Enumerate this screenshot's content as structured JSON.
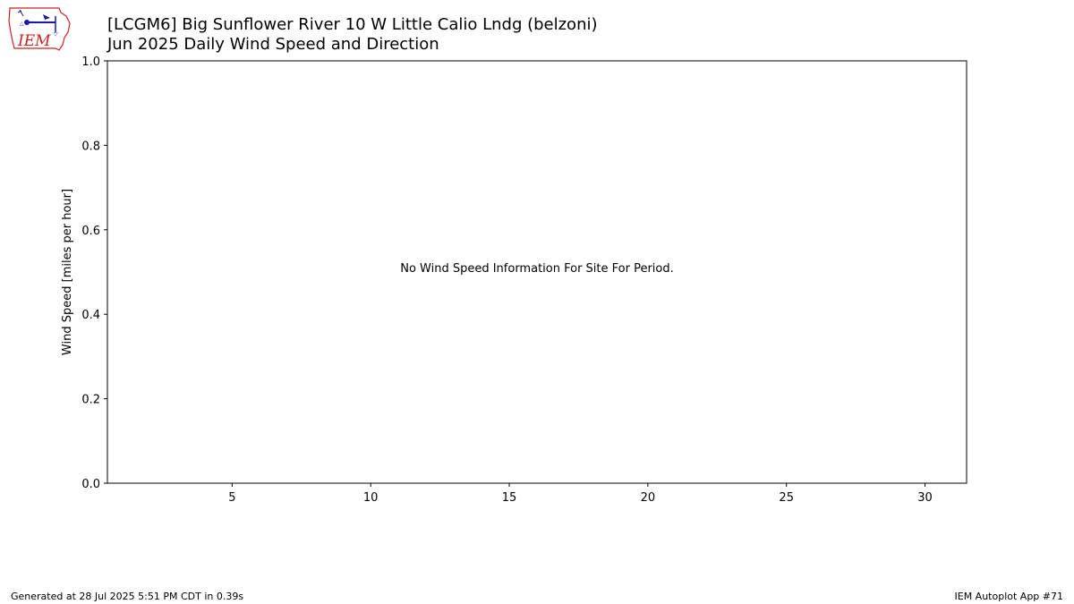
{
  "header": {
    "logo_text": "IEM",
    "title_line1": "[LCGM6] Big Sunflower River 10 W Little Calio Lndg (belzoni)",
    "title_line2": "Jun 2025 Daily Wind Speed and Direction"
  },
  "chart_data": {
    "type": "line",
    "ylabel": "Wind Speed [miles per hour]",
    "xlim": [
      0.5,
      31.5
    ],
    "ylim": [
      0,
      1
    ],
    "x_ticks": [
      5,
      10,
      15,
      20,
      25,
      30
    ],
    "y_ticks": [
      0.0,
      0.2,
      0.4,
      0.6,
      0.8,
      1.0
    ],
    "y_tick_labels": [
      "0.0",
      "0.2",
      "0.4",
      "0.6",
      "0.8",
      "1.0"
    ],
    "grid": false,
    "series": [],
    "annotation": "No Wind Speed Information For Site For Period."
  },
  "footer": {
    "generated": "Generated at 28 Jul 2025 5:51 PM CDT in 0.39s",
    "app": "IEM Autoplot App #71"
  },
  "colors": {
    "logo_red": "#cc2222",
    "logo_blue": "#1a1aaa"
  }
}
